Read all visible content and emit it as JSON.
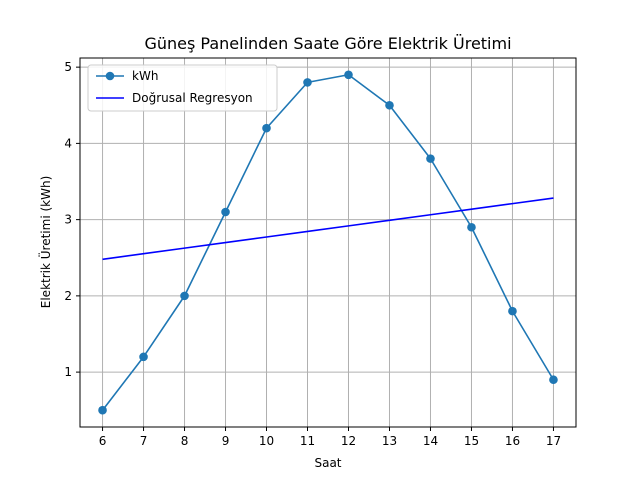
{
  "chart_data": {
    "type": "line",
    "title": "Güneş Panelinden Saate Göre Elektrik Üretimi",
    "xlabel": "Saat",
    "ylabel": "Elektrik Üretimi (kWh)",
    "x": [
      6,
      7,
      8,
      9,
      10,
      11,
      12,
      13,
      14,
      15,
      16,
      17
    ],
    "xlim": [
      5.45,
      17.55
    ],
    "ylim": [
      0.28,
      5.12
    ],
    "xticks": [
      6,
      7,
      8,
      9,
      10,
      11,
      12,
      13,
      14,
      15,
      16,
      17
    ],
    "yticks": [
      1,
      2,
      3,
      4,
      5
    ],
    "grid": true,
    "legend_position": "upper-left",
    "series": [
      {
        "name": "kWh",
        "kind": "line-with-markers",
        "color": "#1f77b4",
        "values": [
          0.5,
          1.2,
          2.0,
          3.1,
          4.2,
          4.8,
          4.9,
          4.5,
          3.8,
          2.9,
          1.8,
          0.9
        ]
      },
      {
        "name": "Doğrusal Regresyon",
        "kind": "line",
        "color": "#0000ff",
        "values": [
          2.48,
          2.553,
          2.626,
          2.699,
          2.772,
          2.845,
          2.918,
          2.991,
          3.064,
          3.137,
          3.21,
          3.283
        ]
      }
    ]
  }
}
